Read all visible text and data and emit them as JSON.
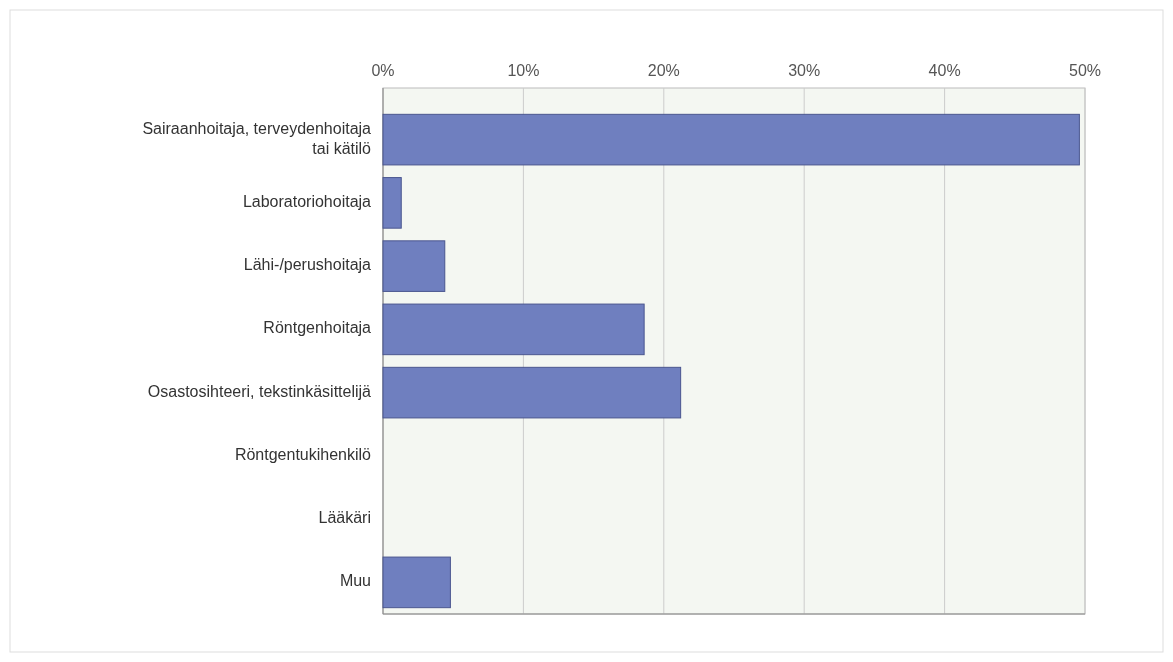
{
  "chart_data": {
    "type": "bar",
    "orientation": "horizontal",
    "categories": [
      "Sairaanhoitaja, terveydenhoitaja\ntai kätilö",
      "Laboratoriohoitaja",
      "Lähi-/perushoitaja",
      "Röntgenhoitaja",
      "Osastosihteeri, tekstinkäsittelijä",
      "Röntgentukihenkilö",
      "Lääkäri",
      "Muu"
    ],
    "values": [
      49.6,
      1.3,
      4.4,
      18.6,
      21.2,
      0,
      0,
      4.8
    ],
    "color": "#6f7fbf",
    "xlim": [
      0,
      50
    ],
    "xticks": [
      {
        "value": 0,
        "label": "0%"
      },
      {
        "value": 10,
        "label": "10%"
      },
      {
        "value": 20,
        "label": "20%"
      },
      {
        "value": 30,
        "label": "30%"
      },
      {
        "value": 40,
        "label": "40%"
      },
      {
        "value": 50,
        "label": "50%"
      }
    ],
    "grid": "x"
  }
}
